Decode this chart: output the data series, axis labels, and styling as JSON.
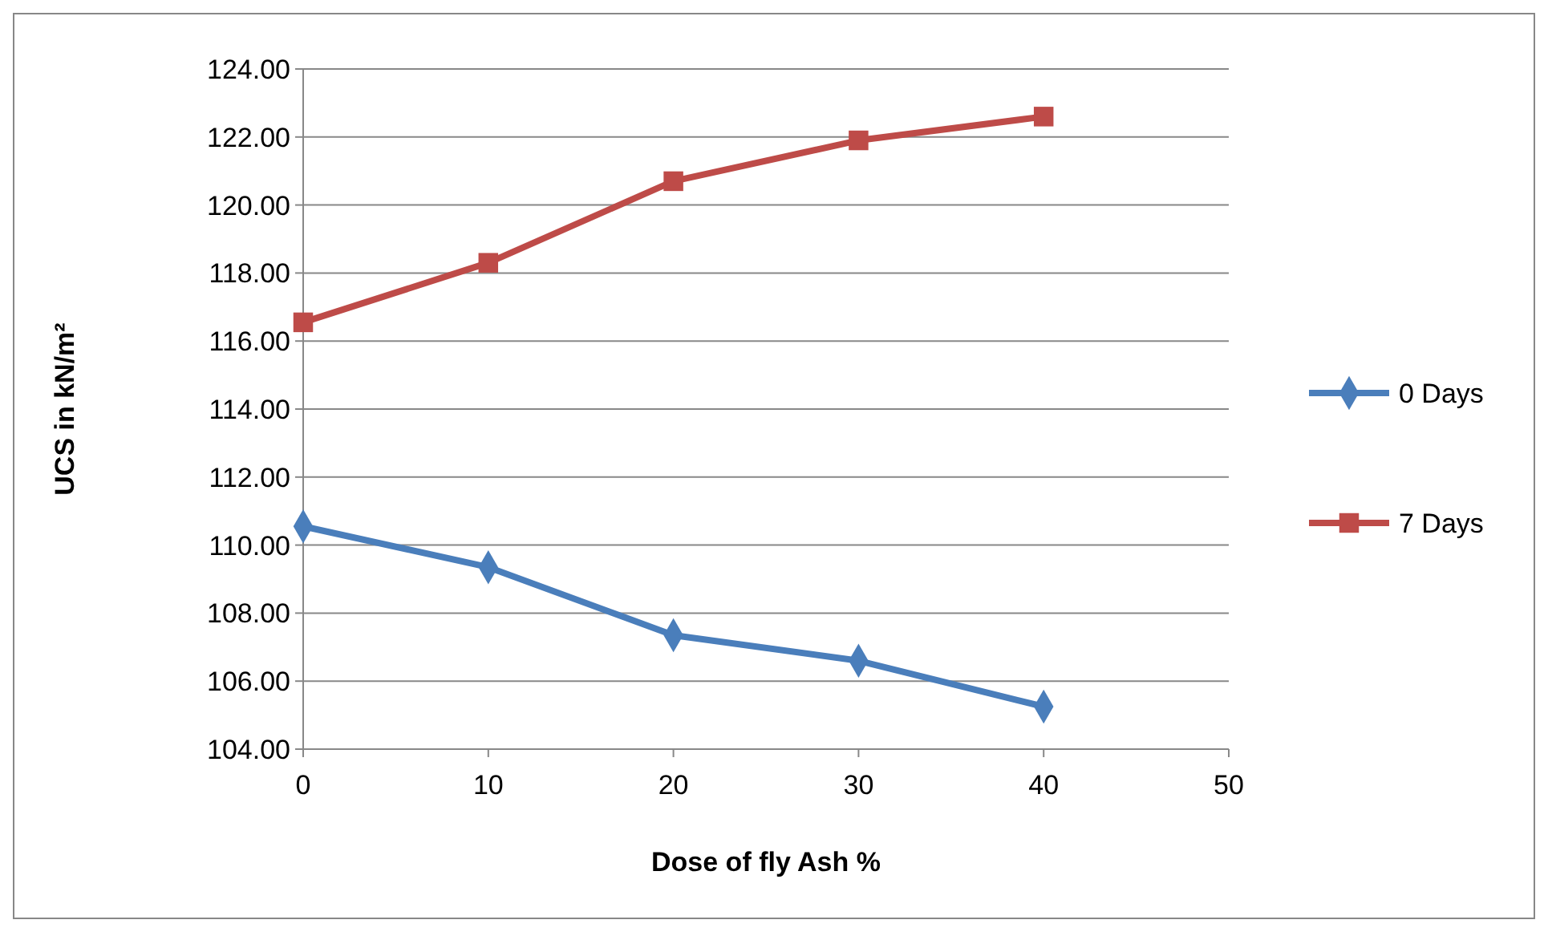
{
  "chart_data": {
    "type": "line",
    "xlabel": "Dose of fly Ash %",
    "ylabel": "UCS in kN/m²",
    "x": [
      0,
      10,
      20,
      30,
      40
    ],
    "series": [
      {
        "name": "0 Days",
        "color": "#4a7ebb",
        "marker": "diamond",
        "values": [
          110.55,
          109.35,
          107.35,
          106.6,
          105.25
        ]
      },
      {
        "name": "7 Days",
        "color": "#be4b48",
        "marker": "square",
        "values": [
          116.55,
          118.3,
          120.7,
          121.9,
          122.6
        ]
      }
    ],
    "xlim": [
      0,
      50
    ],
    "xticks": [
      0,
      10,
      20,
      30,
      40,
      50
    ],
    "ylim": [
      104,
      124
    ],
    "yticks": [
      {
        "value": 104,
        "label": "104.00"
      },
      {
        "value": 106,
        "label": "106.00"
      },
      {
        "value": 108,
        "label": "108.00"
      },
      {
        "value": 110,
        "label": "110.00"
      },
      {
        "value": 112,
        "label": "112.00"
      },
      {
        "value": 114,
        "label": "114.00"
      },
      {
        "value": 116,
        "label": "116.00"
      },
      {
        "value": 118,
        "label": "118.00"
      },
      {
        "value": 120,
        "label": "120.00"
      },
      {
        "value": 122,
        "label": "122.00"
      },
      {
        "value": 124,
        "label": "124.00"
      }
    ],
    "grid": "y",
    "legend": "right",
    "line_style": "solid"
  }
}
